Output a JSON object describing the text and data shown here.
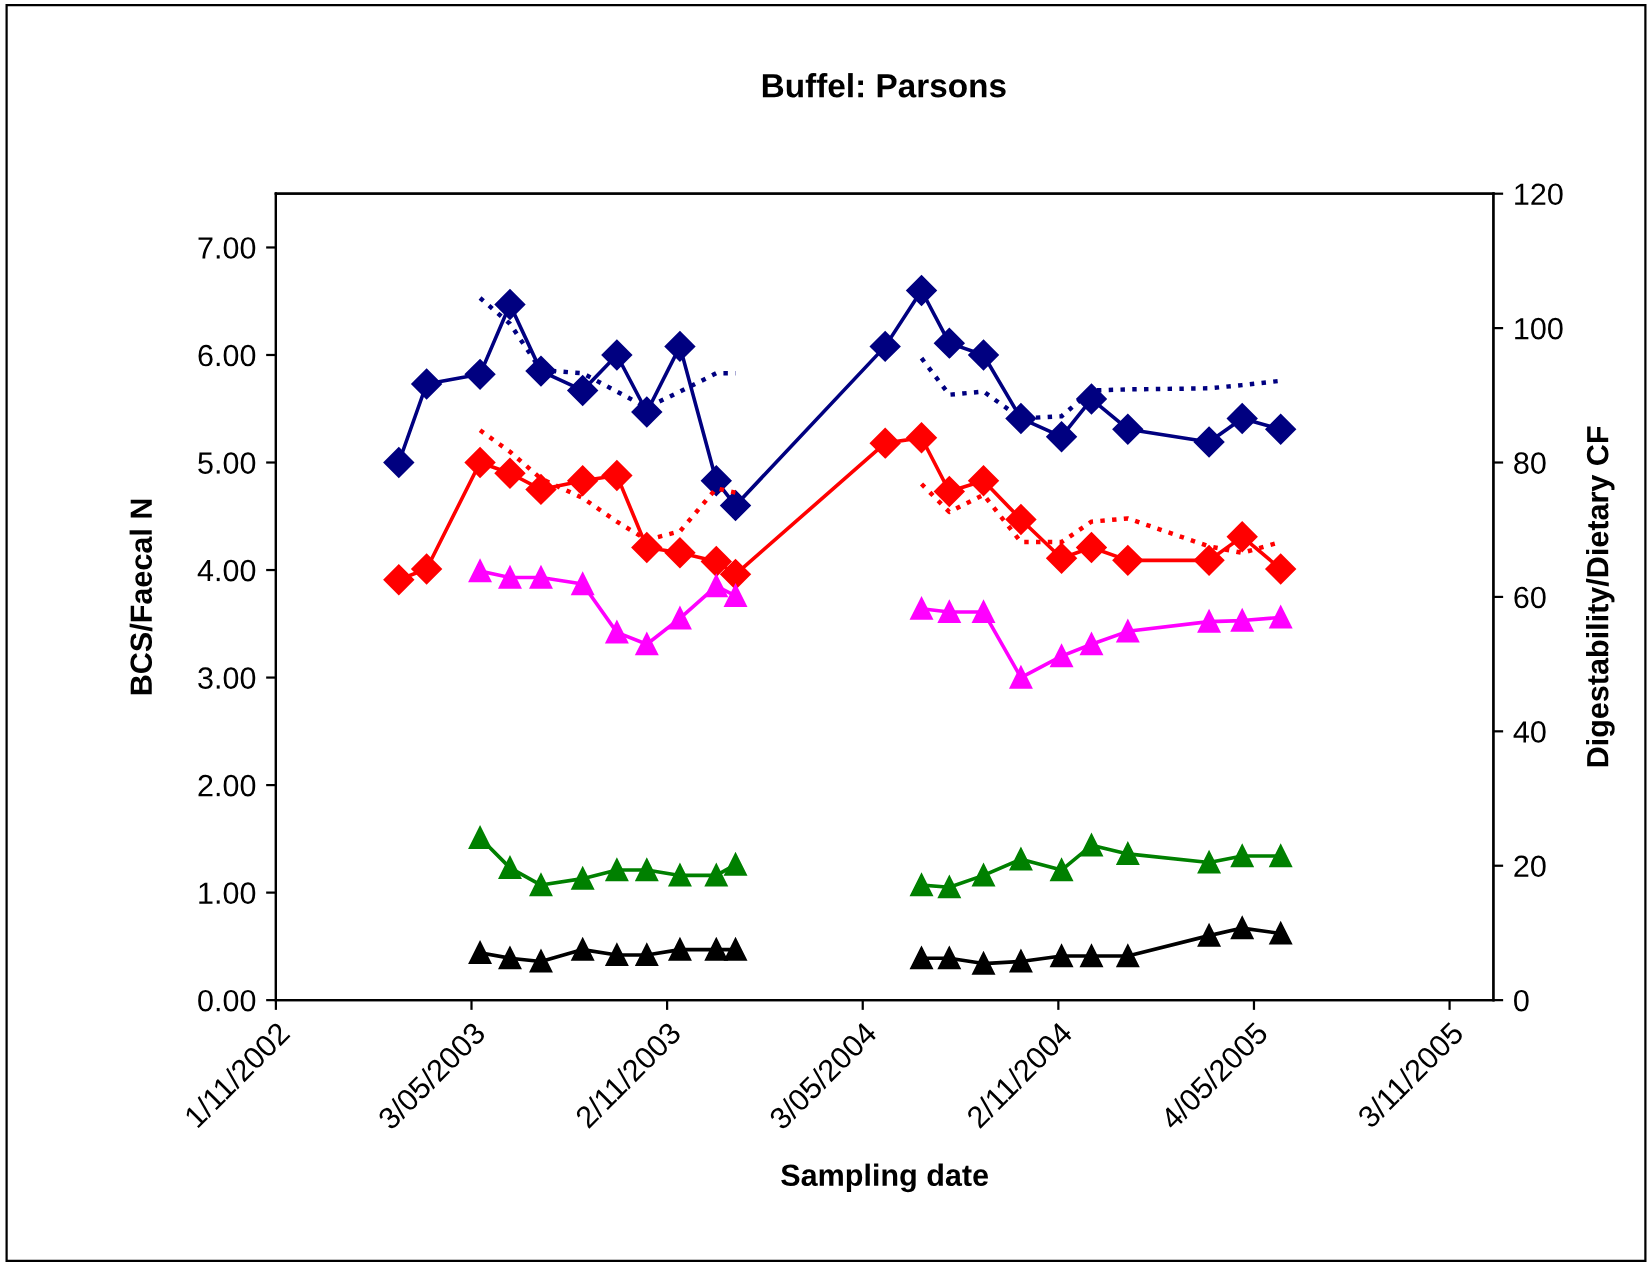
{
  "chart_data": {
    "type": "line",
    "title": "Buffel: Parsons",
    "xlabel": "Sampling date",
    "ylabel": "BCS/Faecal N",
    "y2label": "Digestability/Dietary CF",
    "x": [
      "2003-02-24",
      "2003-03-22",
      "2003-05-11",
      "2003-06-08",
      "2003-07-07",
      "2003-08-15",
      "2003-09-16",
      "2003-10-14",
      "2003-11-14",
      "2003-12-18",
      "2004-01-05",
      "2004-05-24",
      "2004-06-27",
      "2004-07-23",
      "2004-08-24",
      "2004-09-28",
      "2004-11-05",
      "2004-12-03",
      "2005-01-06",
      "2005-03-23",
      "2005-04-23",
      "2005-05-29"
    ],
    "series": [
      {
        "color": "#000080",
        "marker": "diamond",
        "line_style": "solid",
        "values": [
          5.0,
          5.73,
          5.82,
          6.47,
          5.85,
          5.67,
          6.0,
          5.47,
          6.08,
          4.83,
          4.6,
          6.08,
          6.6,
          6.11,
          6.0,
          5.41,
          5.24,
          5.59,
          5.31,
          5.19,
          5.41,
          5.31
        ]
      },
      {
        "color": "#000080",
        "marker": "none",
        "line_style": "dotted",
        "values": [
          null,
          null,
          6.53,
          6.29,
          5.86,
          5.83,
          5.66,
          5.51,
          5.66,
          5.83,
          5.83,
          null,
          5.97,
          5.63,
          5.66,
          5.41,
          5.43,
          5.67,
          5.68,
          5.69,
          5.72,
          5.76
        ]
      },
      {
        "color": "#ff0000",
        "marker": "diamond",
        "line_style": "solid",
        "values": [
          3.91,
          4.01,
          5.0,
          4.9,
          4.75,
          4.83,
          4.88,
          4.21,
          4.16,
          4.08,
          3.96,
          5.18,
          5.23,
          4.73,
          4.83,
          4.47,
          4.11,
          4.21,
          4.09,
          4.09,
          4.31,
          4.01
        ]
      },
      {
        "color": "#ff0000",
        "marker": "none",
        "line_style": "dotted",
        "values": [
          null,
          null,
          5.3,
          5.1,
          4.85,
          4.67,
          4.45,
          4.28,
          4.36,
          4.76,
          4.72,
          null,
          4.8,
          4.54,
          4.7,
          4.26,
          4.26,
          4.45,
          4.48,
          4.22,
          4.16,
          4.26
        ]
      },
      {
        "color": "#ff00ff",
        "marker": "triangle",
        "line_style": "solid",
        "values": [
          null,
          null,
          3.99,
          3.93,
          3.93,
          3.87,
          3.42,
          3.31,
          3.55,
          3.85,
          3.76,
          null,
          3.64,
          3.61,
          3.61,
          3.0,
          3.2,
          3.31,
          3.43,
          3.52,
          3.53,
          3.56
        ]
      },
      {
        "color": "#008000",
        "marker": "triangle",
        "line_style": "solid",
        "values": [
          null,
          null,
          1.51,
          1.23,
          1.07,
          1.13,
          1.21,
          1.21,
          1.16,
          1.16,
          1.26,
          null,
          1.07,
          1.05,
          1.16,
          1.31,
          1.21,
          1.44,
          1.36,
          1.28,
          1.34,
          1.34
        ]
      },
      {
        "color": "#000000",
        "marker": "triangle",
        "line_style": "solid",
        "values": [
          null,
          null,
          0.44,
          0.39,
          0.36,
          0.47,
          0.42,
          0.42,
          0.47,
          0.47,
          0.47,
          null,
          0.39,
          0.39,
          0.34,
          0.36,
          0.41,
          0.41,
          0.41,
          0.6,
          0.67,
          0.62
        ]
      }
    ],
    "xlim": [
      "2002-11-01",
      "2005-12-14"
    ],
    "xticks": [
      {
        "value": "2002-11-01",
        "label": "1/11/2002"
      },
      {
        "value": "2003-05-03",
        "label": "3/05/2003"
      },
      {
        "value": "2003-11-02",
        "label": "2/11/2003"
      },
      {
        "value": "2004-05-03",
        "label": "3/05/2004"
      },
      {
        "value": "2004-11-02",
        "label": "2/11/2004"
      },
      {
        "value": "2005-05-04",
        "label": "4/05/2005"
      },
      {
        "value": "2005-11-03",
        "label": "3/11/2005"
      }
    ],
    "ylim": [
      0,
      7.5
    ],
    "yticks": [
      {
        "value": 0,
        "label": "0.00"
      },
      {
        "value": 1,
        "label": "1.00"
      },
      {
        "value": 2,
        "label": "2.00"
      },
      {
        "value": 3,
        "label": "3.00"
      },
      {
        "value": 4,
        "label": "4.00"
      },
      {
        "value": 5,
        "label": "5.00"
      },
      {
        "value": 6,
        "label": "6.00"
      },
      {
        "value": 7,
        "label": "7.00"
      }
    ],
    "y2lim": [
      0,
      120
    ],
    "y2ticks": [
      0,
      20,
      40,
      60,
      80,
      100,
      120
    ],
    "grid": false
  }
}
